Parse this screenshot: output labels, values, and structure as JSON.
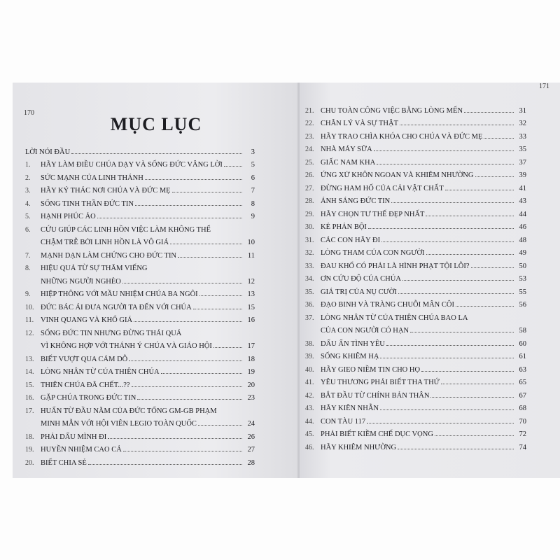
{
  "left": {
    "page_number": "170",
    "title": "MỤC LỤC",
    "entries": [
      {
        "num": "",
        "lines": [
          "Lời nói đầu"
        ],
        "page": "3"
      },
      {
        "num": "1.",
        "lines": [
          "Hãy làm điều Chúa dạy và sống đức vâng lời"
        ],
        "page": "5"
      },
      {
        "num": "2.",
        "lines": [
          "Sức mạnh của Linh Thánh"
        ],
        "page": "6"
      },
      {
        "num": "3.",
        "lines": [
          "Hãy ký thác nơi Chúa và Đức Mẹ"
        ],
        "page": "7"
      },
      {
        "num": "4.",
        "lines": [
          "Sống tinh thần đức tin"
        ],
        "page": "8"
      },
      {
        "num": "5.",
        "lines": [
          "Hạnh phúc ảo"
        ],
        "page": "9"
      },
      {
        "num": "6.",
        "lines": [
          "Cứu giúp các linh hồn việc làm không thể",
          "chậm trễ bởi linh hồn là vô giá"
        ],
        "page": "10"
      },
      {
        "num": "7.",
        "lines": [
          "Mạnh dạn làm chứng cho đức tin"
        ],
        "page": "11"
      },
      {
        "num": "8.",
        "lines": [
          "Hiệu quả từ sự thăm viếng",
          "những người nghèo"
        ],
        "page": "12"
      },
      {
        "num": "9.",
        "lines": [
          "Hiệp thông với mầu nhiệm Chúa Ba Ngôi"
        ],
        "page": "13"
      },
      {
        "num": "10.",
        "lines": [
          "Đức bác ái đưa người ta đến với Chúa"
        ],
        "page": "15"
      },
      {
        "num": "11.",
        "lines": [
          "Vinh quang và khổ giá"
        ],
        "page": "16"
      },
      {
        "num": "12.",
        "lines": [
          "Sống đức tin nhưng đừng thái quá",
          "vì không hợp với thánh ý Chúa và Giáo hội"
        ],
        "page": "17"
      },
      {
        "num": "13.",
        "lines": [
          "Biết vượt qua cám dỗ"
        ],
        "page": "18"
      },
      {
        "num": "14.",
        "lines": [
          "Lòng nhân từ của Thiên Chúa"
        ],
        "page": "19"
      },
      {
        "num": "15.",
        "lines": [
          "Thiên Chúa đã chết...??"
        ],
        "page": "20"
      },
      {
        "num": "16.",
        "lines": [
          "Gặp Chúa trong đức tin"
        ],
        "page": "23"
      },
      {
        "num": "17.",
        "lines": [
          "Huấn từ đầu năm của Đức Tổng GM-GB Phạm",
          "Minh Mẫn với hội viên Legio toàn quốc"
        ],
        "page": "24"
      },
      {
        "num": "18.",
        "lines": [
          "Phải dấu mình đi"
        ],
        "page": "26"
      },
      {
        "num": "19.",
        "lines": [
          "Huyền nhiệm cao cả"
        ],
        "page": "27"
      },
      {
        "num": "20.",
        "lines": [
          "Biết chia sẻ"
        ],
        "page": "28"
      }
    ]
  },
  "right": {
    "page_number": "171",
    "entries": [
      {
        "num": "21.",
        "lines": [
          "Chu toàn công việc bằng lòng mến"
        ],
        "page": "31"
      },
      {
        "num": "22.",
        "lines": [
          "Chân lý và sự thật"
        ],
        "page": "32"
      },
      {
        "num": "23.",
        "lines": [
          "Hãy trao chìa khóa cho Chúa và Đức Mẹ"
        ],
        "page": "33"
      },
      {
        "num": "24.",
        "lines": [
          "Nhà máy sữa"
        ],
        "page": "35"
      },
      {
        "num": "25.",
        "lines": [
          "Giấc nam kha"
        ],
        "page": "37"
      },
      {
        "num": "26.",
        "lines": [
          "Ứng xử khôn ngoan và khiêm nhường"
        ],
        "page": "39"
      },
      {
        "num": "27.",
        "lines": [
          "Đừng ham hố của cải vật chất"
        ],
        "page": "41"
      },
      {
        "num": "28.",
        "lines": [
          "Ánh sáng đức tin"
        ],
        "page": "43"
      },
      {
        "num": "29.",
        "lines": [
          "Hãy chọn tư thế đẹp nhất"
        ],
        "page": "44"
      },
      {
        "num": "30.",
        "lines": [
          "Kẻ phản bội"
        ],
        "page": "46"
      },
      {
        "num": "31.",
        "lines": [
          "Các con hãy đi"
        ],
        "page": "48"
      },
      {
        "num": "32.",
        "lines": [
          "Lòng tham của con người"
        ],
        "page": "49"
      },
      {
        "num": "33.",
        "lines": [
          "Đau khổ có phải là hình phạt tội lỗi?"
        ],
        "page": "50"
      },
      {
        "num": "34.",
        "lines": [
          "Ơn cứu độ của Chúa"
        ],
        "page": "53"
      },
      {
        "num": "35.",
        "lines": [
          "Giá trị của nụ cười"
        ],
        "page": "55"
      },
      {
        "num": "36.",
        "lines": [
          "Đạo binh và tràng chuỗi Mân Côi"
        ],
        "page": "56"
      },
      {
        "num": "37.",
        "lines": [
          "Lòng nhân từ của Thiên Chúa bao la",
          "của con người có hạn"
        ],
        "page": "58"
      },
      {
        "num": "38.",
        "lines": [
          "Dấu ấn tình yêu"
        ],
        "page": "60"
      },
      {
        "num": "39.",
        "lines": [
          "Sống khiêm hạ"
        ],
        "page": "61"
      },
      {
        "num": "40.",
        "lines": [
          "Hãy gieo niềm tin cho họ"
        ],
        "page": "63"
      },
      {
        "num": "41.",
        "lines": [
          "Yêu thương phải biết tha thứ"
        ],
        "page": "65"
      },
      {
        "num": "42.",
        "lines": [
          "Bắt đầu từ chính bản thân"
        ],
        "page": "67"
      },
      {
        "num": "43.",
        "lines": [
          "Hãy kiên nhẫn"
        ],
        "page": "68"
      },
      {
        "num": "44.",
        "lines": [
          "Con tàu 117"
        ],
        "page": "70"
      },
      {
        "num": "45.",
        "lines": [
          "Phải biết kiềm chế dục vọng"
        ],
        "page": "72"
      },
      {
        "num": "46.",
        "lines": [
          "Hãy khiêm nhường"
        ],
        "page": "74"
      }
    ]
  }
}
